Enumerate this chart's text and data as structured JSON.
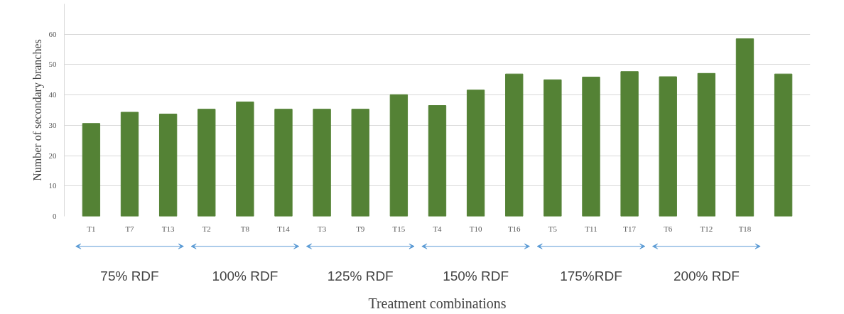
{
  "chart_data": {
    "type": "bar",
    "xlabel": "Treatment combinations",
    "ylabel": "Number of secondary branches",
    "categories": [
      "T1",
      "T7",
      "T13",
      "T2",
      "T8",
      "T14",
      "T3",
      "T9",
      "T15",
      "T4",
      "T10",
      "T16",
      "T5",
      "T11",
      "T17",
      "T6",
      "T12",
      "T18",
      null
    ],
    "values": [
      30.6,
      34.3,
      33.7,
      35.3,
      37.7,
      35.3,
      35.3,
      35.3,
      40.1,
      36.5,
      41.6,
      46.9,
      45.0,
      45.9,
      47.7,
      46.0,
      47.1,
      58.5,
      46.9
    ],
    "color": "#548235",
    "ylim": [
      0,
      70
    ],
    "yticks": [
      0,
      10,
      20,
      30,
      40,
      50,
      60
    ],
    "grid": "y",
    "annotations": [
      "75% RDF",
      "100% RDF",
      "125% RDF",
      "150% RDF",
      "175%RDF",
      "200% RDF"
    ]
  }
}
